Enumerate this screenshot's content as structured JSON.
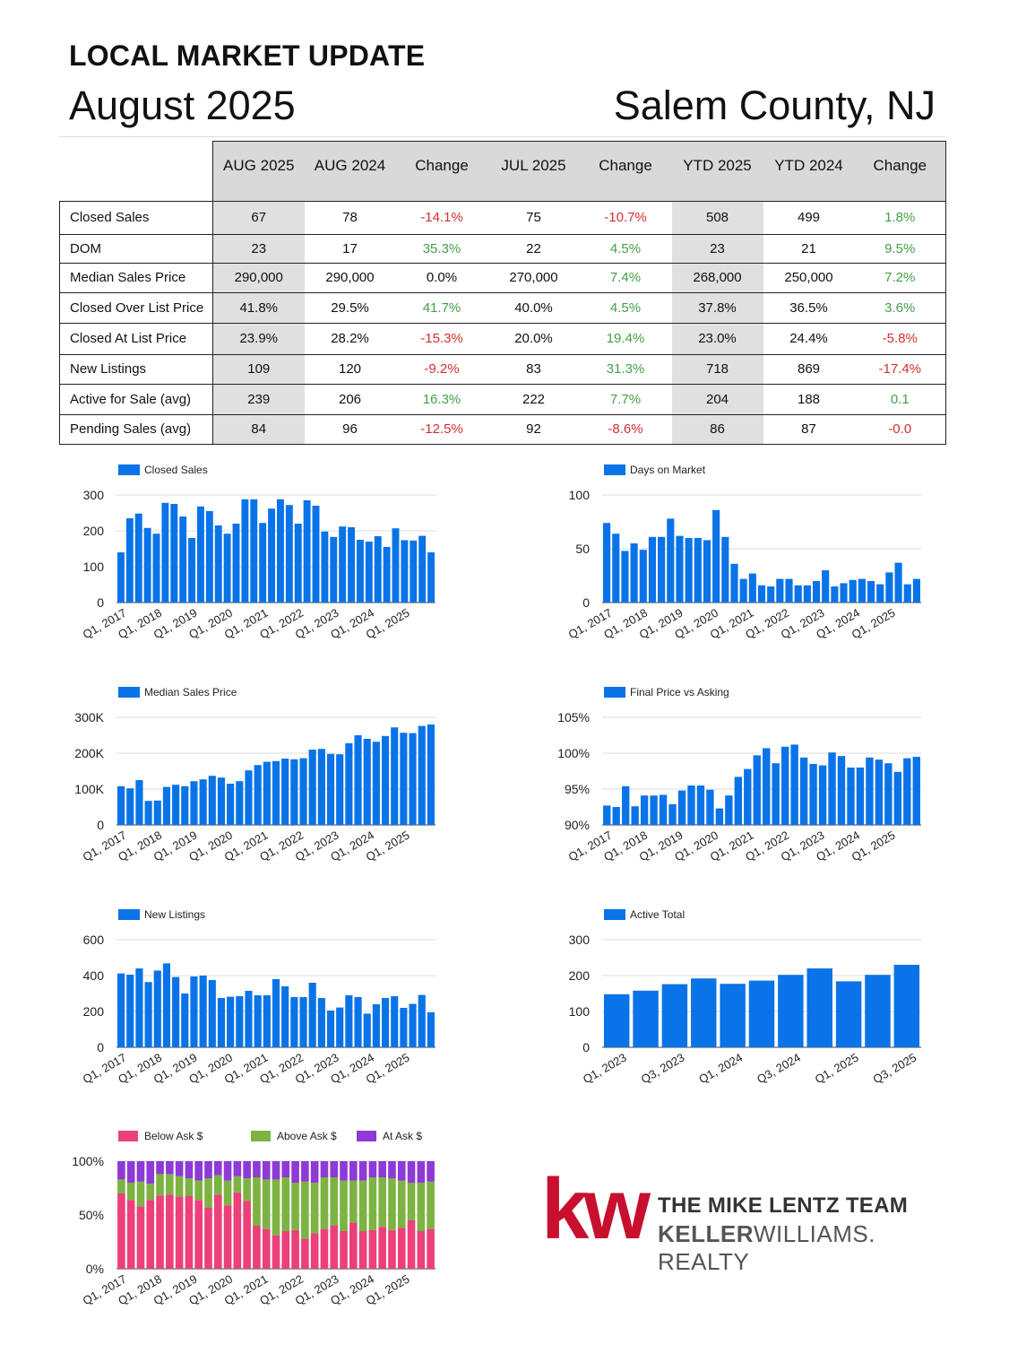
{
  "header": {
    "title": "LOCAL MARKET UPDATE",
    "month": "August 2025",
    "location": "Salem County, NJ"
  },
  "table": {
    "columns": [
      "AUG 2025",
      "AUG 2024",
      "Change",
      "JUL 2025",
      "Change",
      "YTD 2025",
      "YTD 2024",
      "Change"
    ],
    "rows": [
      {
        "label": "Closed Sales",
        "values": [
          "67",
          "78",
          "-14.1%",
          "75",
          "-10.7%",
          "508",
          "499",
          "1.8%"
        ]
      },
      {
        "label": "DOM",
        "values": [
          "23",
          "17",
          "35.3%",
          "22",
          "4.5%",
          "23",
          "21",
          "9.5%"
        ]
      },
      {
        "label": "Median Sales Price",
        "values": [
          "290,000",
          "290,000",
          "0.0%",
          "270,000",
          "7.4%",
          "268,000",
          "250,000",
          "7.2%"
        ]
      },
      {
        "label": "Closed Over List Price",
        "values": [
          "41.8%",
          "29.5%",
          "41.7%",
          "40.0%",
          "4.5%",
          "37.8%",
          "36.5%",
          "3.6%"
        ]
      },
      {
        "label": "Closed At List Price",
        "values": [
          "23.9%",
          "28.2%",
          "-15.3%",
          "20.0%",
          "19.4%",
          "23.0%",
          "24.4%",
          "-5.8%"
        ]
      },
      {
        "label": "New Listings",
        "values": [
          "109",
          "120",
          "-9.2%",
          "83",
          "31.3%",
          "718",
          "869",
          "-17.4%"
        ]
      },
      {
        "label": "Active for Sale (avg)",
        "values": [
          "239",
          "206",
          "16.3%",
          "222",
          "7.7%",
          "204",
          "188",
          "0.1"
        ]
      },
      {
        "label": "Pending Sales (avg)",
        "values": [
          "84",
          "96",
          "-12.5%",
          "92",
          "-8.6%",
          "86",
          "87",
          "-0.0"
        ]
      }
    ],
    "change_colors": {
      "negative": "#d32f2f",
      "positive": "#43a047",
      "neutral": "#111111"
    }
  },
  "colors": {
    "bar": "#0a73e8",
    "pink": "#ec407a",
    "green": "#7cb342",
    "purple": "#8e3ad6",
    "grid": "#dddddd"
  },
  "chart_data": [
    {
      "id": "closed",
      "type": "bar",
      "legend": "Closed Sales",
      "ylim": [
        0,
        300
      ],
      "yticks": [
        "0",
        "100",
        "200",
        "300"
      ],
      "xticks": [
        "Q1, 2017",
        "Q1, 2018",
        "Q1, 2019",
        "Q1, 2020",
        "Q1, 2021",
        "Q1, 2022",
        "Q1, 2023",
        "Q1, 2024",
        "Q1, 2025"
      ],
      "values": [
        140,
        235,
        248,
        208,
        192,
        278,
        275,
        240,
        180,
        268,
        255,
        215,
        192,
        220,
        288,
        288,
        222,
        262,
        288,
        272,
        220,
        285,
        270,
        198,
        183,
        212,
        210,
        175,
        170,
        185,
        155,
        207,
        174,
        173,
        186,
        140
      ]
    },
    {
      "id": "dom",
      "type": "bar",
      "legend": "Days on Market",
      "ylim": [
        0,
        100
      ],
      "yticks": [
        "0",
        "50",
        "100"
      ],
      "xticks": [
        "Q1, 2017",
        "Q1, 2018",
        "Q1, 2019",
        "Q1, 2020",
        "Q1, 2021",
        "Q1, 2022",
        "Q1, 2023",
        "Q1, 2024",
        "Q1, 2025"
      ],
      "values": [
        74,
        64,
        48,
        55,
        49,
        61,
        61,
        78,
        62,
        60,
        60,
        58,
        86,
        61,
        36,
        22,
        27,
        16,
        15,
        22,
        22,
        16,
        16,
        20,
        30,
        15,
        18,
        21,
        22,
        20,
        17,
        28,
        37,
        17,
        22
      ]
    },
    {
      "id": "median",
      "type": "bar",
      "legend": "Median Sales Price",
      "ylim": [
        0,
        300000
      ],
      "yticks": [
        "0",
        "100K",
        "200K",
        "300K"
      ],
      "xticks": [
        "Q1, 2017",
        "Q1, 2018",
        "Q1, 2019",
        "Q1, 2020",
        "Q1, 2021",
        "Q1, 2022",
        "Q1, 2023",
        "Q1, 2024",
        "Q1, 2025"
      ],
      "values": [
        108000,
        102000,
        125000,
        67000,
        68000,
        106000,
        112000,
        108000,
        122000,
        127000,
        137000,
        132000,
        115000,
        122000,
        152000,
        167000,
        176000,
        178000,
        185000,
        183000,
        186000,
        210000,
        212000,
        198000,
        197000,
        228000,
        250000,
        240000,
        232000,
        248000,
        272000,
        257000,
        256000,
        276000,
        280000
      ]
    },
    {
      "id": "final",
      "type": "bar",
      "legend": "Final Price vs Asking",
      "ylim": [
        90,
        105
      ],
      "yticks": [
        "90%",
        "95%",
        "100%",
        "105%"
      ],
      "xticks": [
        "Q1, 2017",
        "Q1, 2018",
        "Q1, 2019",
        "Q1, 2020",
        "Q1, 2021",
        "Q1, 2022",
        "Q1, 2023",
        "Q1, 2024",
        "Q1, 2025"
      ],
      "values": [
        92.7,
        92.5,
        95.4,
        92.6,
        94.1,
        94.1,
        94.2,
        92.9,
        94.8,
        95.5,
        95.5,
        94.9,
        92.3,
        94.1,
        96.7,
        97.8,
        99.7,
        100.7,
        98.6,
        100.9,
        101.2,
        99.4,
        98.5,
        98.3,
        100.1,
        99.6,
        98.0,
        98.0,
        99.4,
        99.1,
        98.6,
        97.4,
        99.3,
        99.5
      ]
    },
    {
      "id": "newlist",
      "type": "bar",
      "legend": "New Listings",
      "ylim": [
        0,
        600
      ],
      "yticks": [
        "0",
        "200",
        "400",
        "600"
      ],
      "xticks": [
        "Q1, 2017",
        "Q1, 2018",
        "Q1, 2019",
        "Q1, 2020",
        "Q1, 2021",
        "Q1, 2022",
        "Q1, 2023",
        "Q1, 2024",
        "Q1, 2025"
      ],
      "values": [
        412,
        405,
        440,
        364,
        428,
        468,
        392,
        300,
        395,
        400,
        375,
        275,
        282,
        285,
        315,
        290,
        290,
        380,
        340,
        280,
        280,
        360,
        275,
        205,
        222,
        290,
        280,
        188,
        240,
        275,
        285,
        220,
        242,
        292,
        195
      ]
    },
    {
      "id": "active",
      "type": "bar",
      "legend": "Active Total",
      "ylim": [
        0,
        300
      ],
      "yticks": [
        "0",
        "100",
        "200",
        "300"
      ],
      "xticks": [
        "Q1, 2023",
        "Q3, 2023",
        "Q1, 2024",
        "Q3, 2024",
        "Q1, 2025",
        "Q3, 2025"
      ],
      "values": [
        148,
        158,
        176,
        192,
        177,
        186,
        202,
        220,
        184,
        202,
        230
      ]
    },
    {
      "id": "ask",
      "type": "stacked",
      "ylim": [
        0,
        100
      ],
      "yticks": [
        "0%",
        "50%",
        "100%"
      ],
      "xticks": [
        "Q1, 2017",
        "Q1, 2018",
        "Q1, 2019",
        "Q1, 2020",
        "Q1, 2021",
        "Q1, 2022",
        "Q1, 2023",
        "Q1, 2024",
        "Q1, 2025"
      ],
      "series": [
        {
          "name": "Below Ask $",
          "values": [
            70,
            64,
            58,
            64,
            68,
            69,
            67,
            68,
            64,
            57,
            69,
            59,
            71,
            63,
            40,
            37,
            31,
            35,
            36,
            28,
            33,
            37,
            40,
            35,
            43,
            35,
            36,
            39,
            36,
            38,
            45,
            35,
            37
          ]
        },
        {
          "name": "Above Ask $",
          "values": [
            13,
            16,
            23,
            15,
            20,
            19,
            19,
            16,
            18,
            27,
            18,
            23,
            15,
            21,
            45,
            46,
            52,
            50,
            44,
            53,
            47,
            48,
            45,
            47,
            39,
            47,
            49,
            46,
            48,
            44,
            35,
            45,
            44
          ]
        },
        {
          "name": "At Ask $",
          "values": [
            17,
            20,
            19,
            21,
            12,
            12,
            14,
            16,
            18,
            16,
            13,
            18,
            14,
            16,
            15,
            17,
            17,
            15,
            20,
            19,
            20,
            15,
            15,
            18,
            18,
            18,
            15,
            15,
            16,
            18,
            20,
            20,
            19
          ]
        }
      ]
    }
  ],
  "logo": {
    "mark": "kw",
    "line1": "THE MIKE LENTZ TEAM",
    "line2_bold": "KELLER",
    "line2_rest": "WILLIAMS. REALTY"
  }
}
